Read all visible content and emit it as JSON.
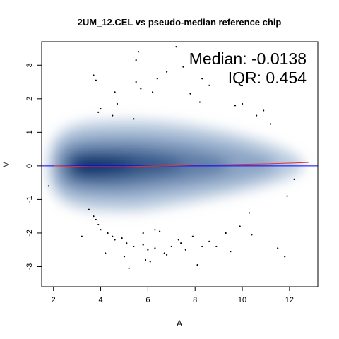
{
  "chart_data": {
    "type": "scatter",
    "title": "2UM_12.CEL vs pseudo-median reference chip",
    "xlabel": "A",
    "ylabel": "M",
    "xlim": [
      1.5,
      13.2
    ],
    "ylim": [
      -3.6,
      3.7
    ],
    "x_ticks": [
      "2",
      "4",
      "6",
      "8",
      "10",
      "12"
    ],
    "y_ticks": [
      "-3",
      "-2",
      "-1",
      "0",
      "1",
      "2",
      "3"
    ],
    "annotations": {
      "median": "Median: -0.0138",
      "iqr": "IQR: 0.454"
    },
    "grid": false,
    "colors": {
      "density": "#08306b",
      "density_light": "#9ecae1",
      "loess": "#e0303a",
      "zero_line": "#0000ff",
      "outlier": "#000000"
    },
    "reference_line": {
      "y": 0
    },
    "loess_curve": {
      "x": [
        2.0,
        3.5,
        5.0,
        6.5,
        8.0,
        9.5,
        11.0,
        12.8
      ],
      "y": [
        0.0,
        -0.02,
        -0.02,
        0.0,
        0.02,
        0.04,
        0.06,
        0.1
      ]
    },
    "density_bands": [
      {
        "x_min": 1.8,
        "x_max": 12.6,
        "m_half": 1.35,
        "level": 0.25
      },
      {
        "x_min": 2.0,
        "x_max": 11.5,
        "m_half": 0.95,
        "level": 0.4
      },
      {
        "x_min": 2.3,
        "x_max": 9.5,
        "m_half": 0.65,
        "level": 0.6
      },
      {
        "x_min": 2.6,
        "x_max": 7.5,
        "m_half": 0.42,
        "level": 0.8
      },
      {
        "x_min": 2.8,
        "x_max": 5.5,
        "m_half": 0.25,
        "level": 1.0
      }
    ],
    "outliers": {
      "x": [
        5.6,
        7.2,
        5.5,
        7.5,
        6.8,
        6.4,
        5.5,
        8.3,
        8.6,
        3.7,
        3.8,
        6.2,
        5.7,
        4.0,
        4.5,
        4.6,
        3.9,
        4.7,
        9.7,
        10.0,
        10.9,
        10.6,
        11.2,
        5.4,
        8.2,
        7.8,
        1.8,
        12.2,
        11.9,
        3.5,
        3.7,
        3.8,
        3.9,
        4.0,
        4.3,
        4.5,
        4.6,
        4.9,
        5.1,
        5.4,
        5.8,
        6.0,
        6.3,
        6.7,
        7.0,
        7.4,
        7.9,
        8.3,
        8.6,
        9.3,
        9.9,
        10.3,
        4.2,
        3.2,
        5.8,
        6.5,
        5.0,
        5.2,
        6.1,
        8.9,
        9.5,
        8.1,
        6.8,
        7.3,
        7.6,
        10.4,
        11.5,
        11.8,
        6.3,
        5.9
      ],
      "y": [
        3.4,
        3.55,
        3.15,
        2.95,
        2.8,
        2.6,
        2.5,
        2.6,
        2.4,
        2.7,
        2.55,
        2.2,
        2.3,
        1.7,
        1.5,
        2.2,
        1.6,
        1.85,
        1.8,
        1.85,
        1.65,
        1.5,
        1.25,
        1.4,
        1.9,
        2.15,
        -0.6,
        -0.4,
        -0.9,
        -1.3,
        -1.5,
        -1.6,
        -1.75,
        -1.9,
        -2.0,
        -2.1,
        -2.2,
        -2.15,
        -2.3,
        -2.4,
        -2.35,
        -2.5,
        -2.45,
        -2.6,
        -2.4,
        -2.3,
        -2.1,
        -2.4,
        -2.25,
        -2.0,
        -1.8,
        -1.4,
        -2.6,
        -2.1,
        -2.0,
        -1.95,
        -2.7,
        -3.05,
        -2.85,
        -2.4,
        -2.55,
        -2.95,
        -2.65,
        -2.2,
        -2.5,
        -2.05,
        -2.45,
        -2.7,
        -1.9,
        -2.8
      ]
    }
  }
}
